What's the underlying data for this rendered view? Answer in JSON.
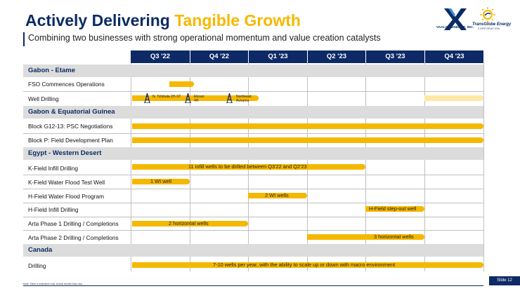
{
  "header": {
    "title_main": "Actively Delivering",
    "title_highlight": "Tangible Growth",
    "subtitle": "Combining two businesses with strong operational momentum and value creation catalysts"
  },
  "logos": {
    "vaalco_text": "VAALCO ENERGY, INC.",
    "transglobe_text": "TransGlobe Energy",
    "transglobe_sub": "CORPORATION"
  },
  "timeline": {
    "quarters": [
      "Q3 '22",
      "Q4 '22",
      "Q1 '23",
      "Q2 '23",
      "Q3 '23",
      "Q4 '23"
    ]
  },
  "sections": [
    {
      "name": "Gabon - Etame"
    },
    {
      "name": "Gabon & Equatorial Guinea"
    },
    {
      "name": "Egypt - Western Desert"
    },
    {
      "name": "Canada"
    }
  ],
  "rows": [
    {
      "label": "FSO Commences Operations"
    },
    {
      "label": "Well Drilling",
      "wells": [
        "N. Tchibala 2H-ST",
        "Ebouri 4H",
        "Northeast Avouma"
      ]
    },
    {
      "label": "Block G12-13: PSC Negotiations"
    },
    {
      "label": "Block P: Field Development Plan"
    },
    {
      "label": "K-Field Infill Drilling",
      "bar_text": "11 infill wells to be drilled between Q3'22 and Q2'23"
    },
    {
      "label": "K-Field Water Flood Test Well",
      "bar_text": "1 WI well"
    },
    {
      "label": "H-Field Water Flood Program",
      "bar_text": "2 WI wells"
    },
    {
      "label": "H-Field Infill Drilling",
      "bar_text": "H-Field step-out well"
    },
    {
      "label": "Arta Phase 1 Drilling / Completions",
      "bar_text": "2 horizontal wells"
    },
    {
      "label": "Arta Phase 2 Drilling / Completions",
      "bar_text": "3 horizontal wells"
    },
    {
      "label": "Drilling",
      "bar_text": "7-10 wells per year, with the ability to scale up or down with macro environment"
    }
  ],
  "colors": {
    "navy": "#0b2b63",
    "gold": "#f5b800",
    "light_gold": "#fde9a6",
    "section_gray": "#dcdcdc"
  },
  "footer": {
    "note": "Note: Table is indicative only. Actual results may vary.",
    "slide": "Slide 12"
  }
}
